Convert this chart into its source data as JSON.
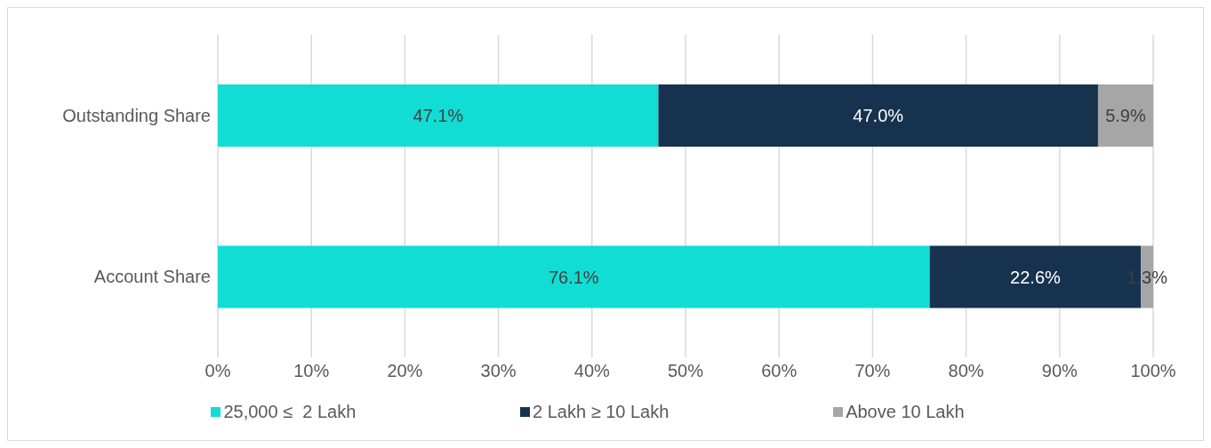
{
  "chart_data": {
    "type": "bar",
    "orientation": "horizontal",
    "stacked": true,
    "categories": [
      "Outstanding Share",
      "Account Share"
    ],
    "series": [
      {
        "name": "25,000 ≤  2 Lakh",
        "color": "#12ddd4",
        "values": [
          47.1,
          76.1
        ],
        "value_labels": [
          "47.1%",
          "76.1%"
        ]
      },
      {
        "name": "2 Lakh ≥ 10 Lakh",
        "color": "#17324f",
        "values": [
          47.0,
          22.6
        ],
        "value_labels": [
          "47.0%",
          "22.6%"
        ]
      },
      {
        "name": "Above 10 Lakh",
        "color": "#a6a6a6",
        "values": [
          5.9,
          1.3
        ],
        "value_labels": [
          "5.9%",
          "1.3%"
        ]
      }
    ],
    "xlim": [
      0,
      100
    ],
    "xticks": [
      {
        "value": 0,
        "label": "0%"
      },
      {
        "value": 10,
        "label": "10%"
      },
      {
        "value": 20,
        "label": "20%"
      },
      {
        "value": 30,
        "label": "30%"
      },
      {
        "value": 40,
        "label": "40%"
      },
      {
        "value": 50,
        "label": "50%"
      },
      {
        "value": 60,
        "label": "60%"
      },
      {
        "value": 70,
        "label": "70%"
      },
      {
        "value": 80,
        "label": "80%"
      },
      {
        "value": 90,
        "label": "90%"
      },
      {
        "value": 100,
        "label": "100%"
      }
    ],
    "grid": "x",
    "legend": "bottom"
  }
}
